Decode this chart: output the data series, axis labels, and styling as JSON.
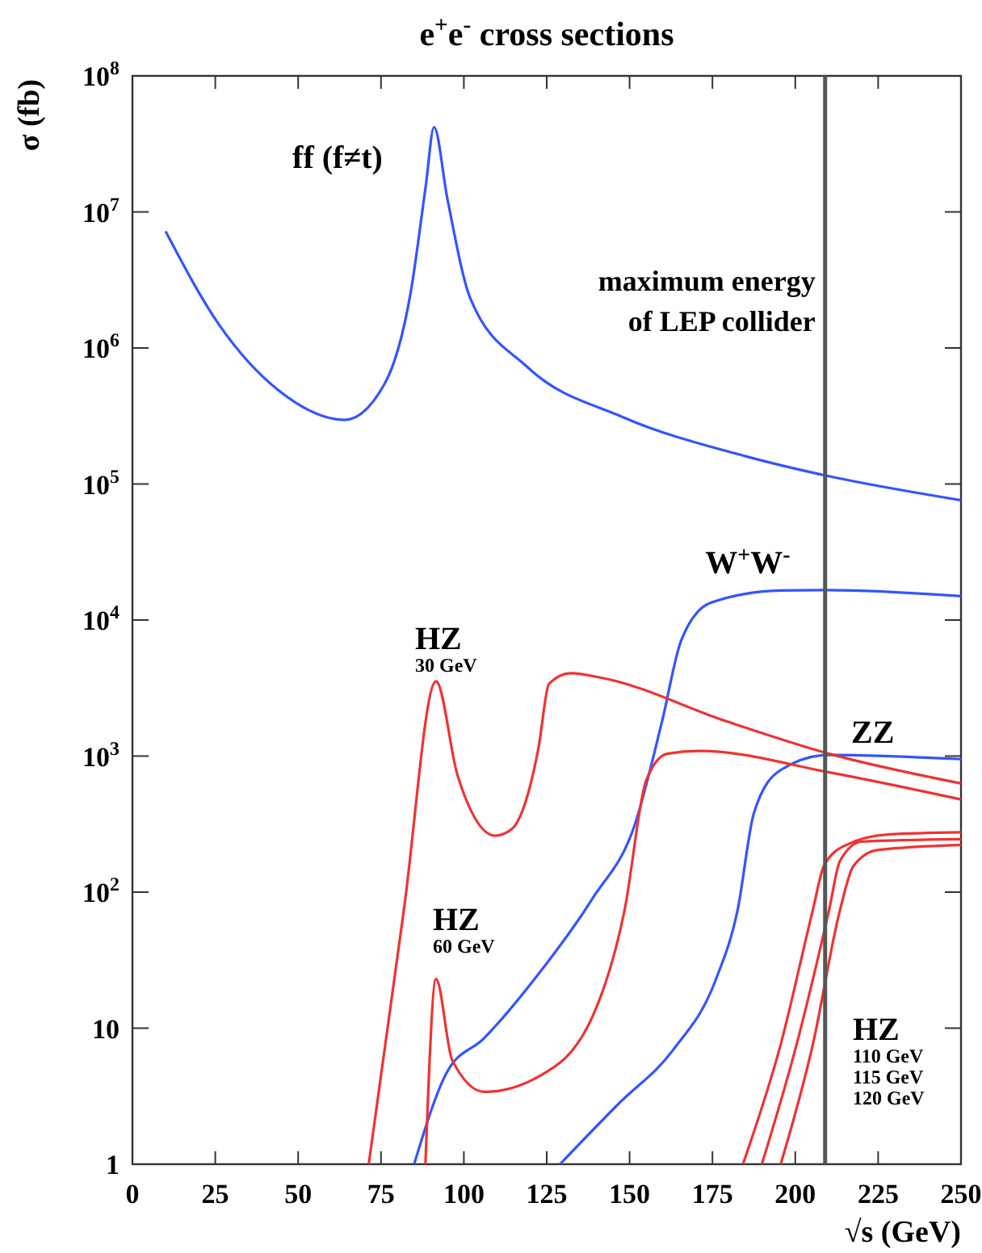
{
  "chart_data": {
    "type": "line",
    "title": "e$^{+}$e$^{-}$ cross sections",
    "xlabel": "√s (GeV)",
    "ylabel": "σ (fb)",
    "log": "y",
    "xlim": [
      0,
      250
    ],
    "ylim": [
      1,
      100000000
    ],
    "xticks": [
      0,
      25,
      50,
      75,
      100,
      125,
      150,
      175,
      200,
      225,
      250
    ],
    "yticks": [
      1,
      10,
      {
        "value": 100,
        "label": "10$^{2}$"
      },
      {
        "value": 1000,
        "label": "10$^{3}$"
      },
      {
        "value": 10000,
        "label": "10$^{4}$"
      },
      {
        "value": 100000,
        "label": "10$^{5}$"
      },
      {
        "value": 1000000,
        "label": "10$^{6}$"
      },
      {
        "value": 10000000,
        "label": "10$^{7}$"
      },
      {
        "value": 100000000,
        "label": "10$^{8}$"
      }
    ],
    "annotations": [
      "HZ\n110 GeV\n115 GeV\n120 GeV"
    ],
    "grid": false,
    "line_style": "solid",
    "marker": "none",
    "ref_lines": [
      {
        "axis": "x",
        "value": 209,
        "label": "maximum energy\nof LEP collider",
        "color": "#555555"
      }
    ],
    "series": [
      {
        "name": "ff (f≠t)",
        "color": "#3355ff",
        "x": [
          10,
          26,
          44,
          64,
          76,
          84,
          88.5,
          91,
          95,
          102,
          119,
          148,
          185,
          209.5,
          250
        ],
        "values": [
          7200000,
          1500000,
          490000,
          296000,
          540000,
          2600000,
          15500000,
          42000000,
          12600000,
          2300000,
          730000,
          310000,
          160000,
          115000,
          76000
        ]
      },
      {
        "name": "W$^{+}$W$^{-}$",
        "color": "#3355ff",
        "x": [
          85,
          95,
          106,
          122.5,
          138.7,
          151.7,
          159.8,
          165.5,
          174.5,
          195.6,
          209.3,
          250
        ],
        "values": [
          1,
          4.8,
          8.4,
          25,
          89,
          320,
          1800,
          7000,
          13400,
          16500,
          16600,
          15000
        ]
      },
      {
        "name": "ZZ",
        "color": "#3355ff",
        "x": [
          129,
          146.8,
          163.1,
          176.1,
          182.6,
          187.5,
          195.6,
          210.2,
          250
        ],
        "values": [
          1,
          2.8,
          6.9,
          23,
          74,
          380,
          790,
          1020,
          950
        ]
      },
      {
        "name": "HZ\n30 GeV",
        "color": "#ee3333",
        "x": [
          71.3,
          81.9,
          91.6,
          98.1,
          109.5,
          114.4,
          122.5,
          125.7,
          132.2,
          142,
          179.3,
          210.2,
          250
        ],
        "values": [
          1,
          74,
          3550,
          720,
          260,
          290,
          1140,
          3400,
          4070,
          3740,
          1800,
          1040,
          630
        ]
      },
      {
        "name": "HZ\n60 GeV",
        "color": "#ee3333",
        "x": [
          88.4,
          91.6,
          96.5,
          106.2,
          122.5,
          138.7,
          148.5,
          155,
          161.4,
          171.2,
          210.2,
          250
        ],
        "values": [
          1,
          23,
          5.8,
          3.4,
          4.4,
          12,
          74,
          660,
          1040,
          1090,
          760,
          480
        ]
      },
      {
        "color": "#ee3333",
        "x": [
          184.2,
          195.6,
          205.3,
          208.6,
          215,
          228,
          250
        ],
        "values": [
          1,
          7.6,
          74,
          155,
          220,
          265,
          275
        ]
      },
      {
        "color": "#ee3333",
        "x": [
          189.9,
          200.4,
          210.2,
          213.5,
          220,
          250
        ],
        "values": [
          1,
          7.6,
          74,
          170,
          235,
          245
        ]
      },
      {
        "color": "#ee3333",
        "x": [
          195.6,
          205.3,
          213.5,
          217.5,
          224.8,
          250
        ],
        "values": [
          1,
          7.6,
          74,
          155,
          204,
          222
        ]
      }
    ]
  }
}
